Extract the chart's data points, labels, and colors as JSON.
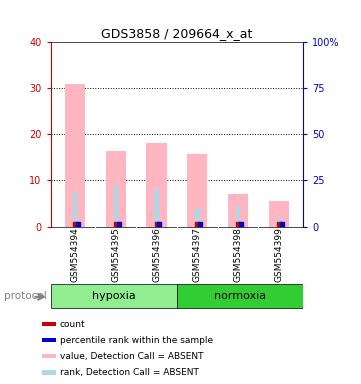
{
  "title": "GDS3858 / 209664_x_at",
  "samples": [
    "GSM554394",
    "GSM554395",
    "GSM554396",
    "GSM554397",
    "GSM554398",
    "GSM554399"
  ],
  "groups": [
    "hypoxia",
    "hypoxia",
    "hypoxia",
    "normoxia",
    "normoxia",
    "normoxia"
  ],
  "pink_bar_heights": [
    31.0,
    16.5,
    18.2,
    15.7,
    7.0,
    5.5
  ],
  "blue_bar_heights": [
    7.5,
    9.0,
    8.2,
    4.0,
    4.5,
    2.0
  ],
  "ylim_left": [
    0,
    40
  ],
  "ylim_right": [
    0,
    100
  ],
  "yticks_left": [
    0,
    10,
    20,
    30,
    40
  ],
  "yticks_right": [
    0,
    25,
    50,
    75,
    100
  ],
  "ytick_labels_right": [
    "0",
    "25",
    "50",
    "75",
    "100%"
  ],
  "ylabel_left_color": "#cc0000",
  "ylabel_right_color": "#0000cc",
  "hyp_color": "#90ee90",
  "norm_color": "#32cd32",
  "bar_color_pink": "#ffb6c1",
  "bar_color_blue": "#add8e6",
  "bar_color_red": "#cc0000",
  "bar_color_blue_dark": "#0000cc",
  "protocol_label": "protocol",
  "legend_items": [
    {
      "color": "#cc0000",
      "label": "count"
    },
    {
      "color": "#0000cc",
      "label": "percentile rank within the sample"
    },
    {
      "color": "#ffb6c1",
      "label": "value, Detection Call = ABSENT"
    },
    {
      "color": "#add8e6",
      "label": "rank, Detection Call = ABSENT"
    }
  ],
  "background_color": "#ffffff",
  "bar_width": 0.5
}
